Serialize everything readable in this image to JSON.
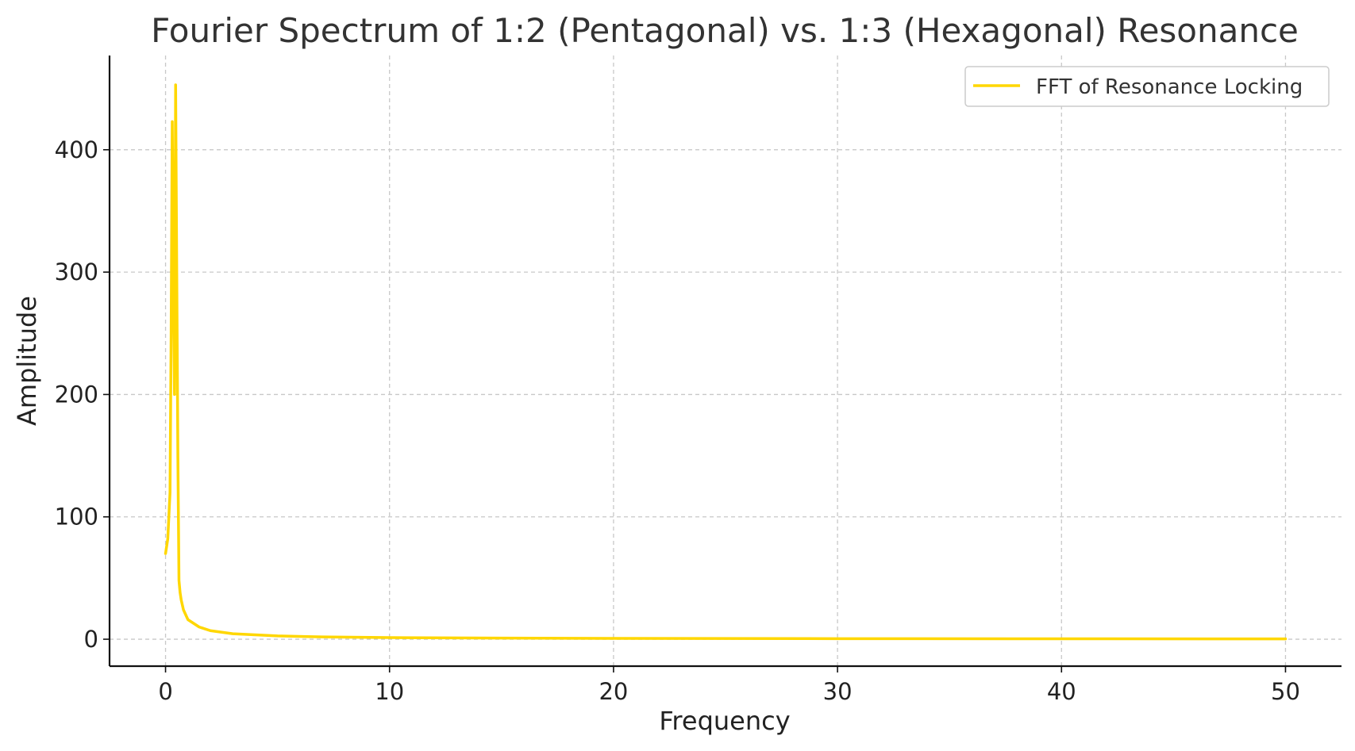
{
  "chart_data": {
    "type": "line",
    "title": "Fourier Spectrum of 1:2 (Pentagonal) vs. 1:3 (Hexagonal) Resonance",
    "xlabel": "Frequency",
    "ylabel": "Amplitude",
    "xlim": [
      -2.5,
      52.5
    ],
    "ylim": [
      -22,
      477
    ],
    "xticks": [
      0,
      10,
      20,
      30,
      40,
      50
    ],
    "yticks": [
      0,
      100,
      200,
      300,
      400
    ],
    "grid": true,
    "legend_position": "top-right",
    "series": [
      {
        "name": "FFT of Resonance Locking",
        "color": "#FFD700",
        "x": [
          0.0,
          0.1,
          0.2,
          0.25,
          0.3,
          0.35,
          0.4,
          0.45,
          0.5,
          0.55,
          0.6,
          0.65,
          0.7,
          0.8,
          1.0,
          1.5,
          2.0,
          3.0,
          5.0,
          7.0,
          10.0,
          15.0,
          20.0,
          30.0,
          40.0,
          50.0
        ],
        "y": [
          70,
          82,
          120,
          250,
          423,
          300,
          200,
          453,
          300,
          150,
          48,
          38,
          32,
          24,
          16,
          10,
          7,
          4.5,
          2.7,
          1.9,
          1.3,
          0.9,
          0.7,
          0.45,
          0.35,
          0.3
        ]
      }
    ]
  }
}
